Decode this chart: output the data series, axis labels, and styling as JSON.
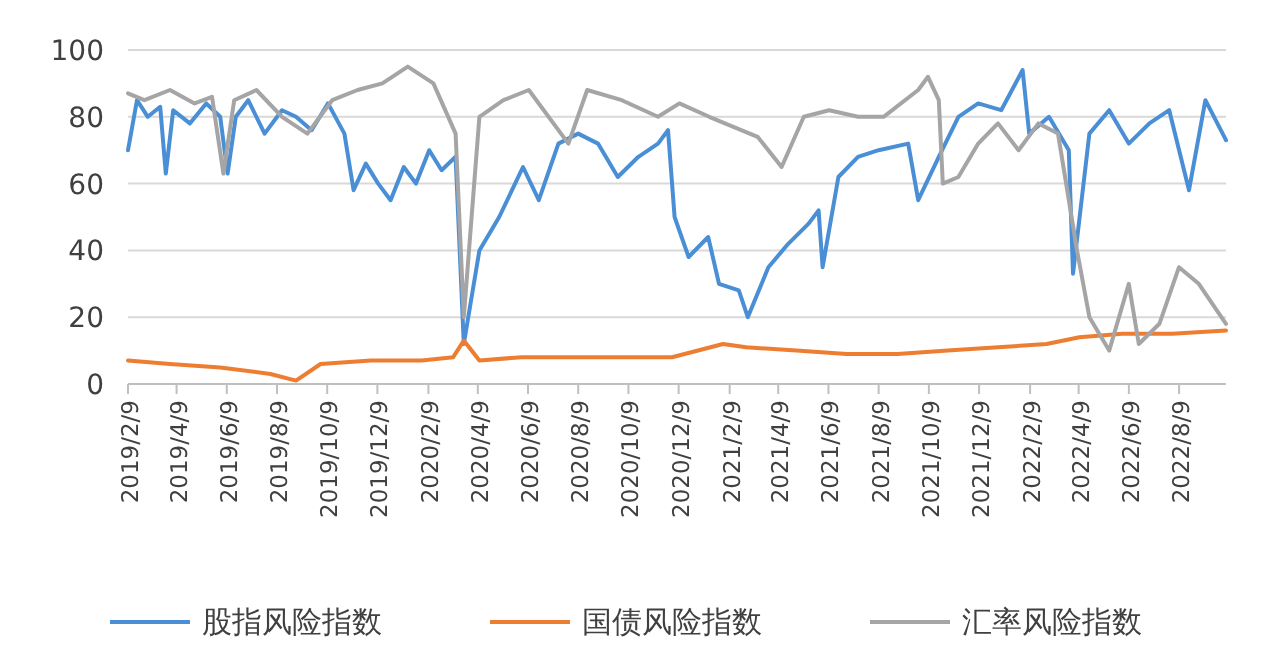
{
  "chart_data": {
    "type": "line",
    "xlim": [
      "2019-02-09",
      "2022-10-05"
    ],
    "ylim": [
      0,
      100
    ],
    "yticks": [
      0,
      20,
      40,
      60,
      80,
      100
    ],
    "xticks": [
      {
        "value": "2019-02-09",
        "label": "2019/2/9"
      },
      {
        "value": "2019-04-09",
        "label": "2019/4/9"
      },
      {
        "value": "2019-06-09",
        "label": "2019/6/9"
      },
      {
        "value": "2019-08-09",
        "label": "2019/8/9"
      },
      {
        "value": "2019-10-09",
        "label": "2019/10/9"
      },
      {
        "value": "2019-12-09",
        "label": "2019/12/9"
      },
      {
        "value": "2020-02-09",
        "label": "2020/2/9"
      },
      {
        "value": "2020-04-09",
        "label": "2020/4/9"
      },
      {
        "value": "2020-06-09",
        "label": "2020/6/9"
      },
      {
        "value": "2020-08-09",
        "label": "2020/8/9"
      },
      {
        "value": "2020-10-09",
        "label": "2020/10/9"
      },
      {
        "value": "2020-12-09",
        "label": "2020/12/9"
      },
      {
        "value": "2021-02-09",
        "label": "2021/2/9"
      },
      {
        "value": "2021-04-09",
        "label": "2021/4/9"
      },
      {
        "value": "2021-06-09",
        "label": "2021/6/9"
      },
      {
        "value": "2021-08-09",
        "label": "2021/8/9"
      },
      {
        "value": "2021-10-09",
        "label": "2021/10/9"
      },
      {
        "value": "2021-12-09",
        "label": "2021/12/9"
      },
      {
        "value": "2022-02-09",
        "label": "2022/2/9"
      },
      {
        "value": "2022-04-09",
        "label": "2022/4/9"
      },
      {
        "value": "2022-06-09",
        "label": "2022/6/9"
      },
      {
        "value": "2022-08-09",
        "label": "2022/8/9"
      }
    ],
    "grid": "y",
    "legend": "bottom",
    "series": [
      {
        "name": "股指风险指数",
        "color": "#4a8fd6",
        "x": [
          "2019-02-09",
          "2019-02-20",
          "2019-03-05",
          "2019-03-20",
          "2019-03-27",
          "2019-04-05",
          "2019-04-25",
          "2019-05-15",
          "2019-06-01",
          "2019-06-10",
          "2019-06-20",
          "2019-07-05",
          "2019-07-25",
          "2019-08-15",
          "2019-09-01",
          "2019-09-20",
          "2019-10-10",
          "2019-10-30",
          "2019-11-10",
          "2019-11-25",
          "2019-12-10",
          "2019-12-25",
          "2020-01-10",
          "2020-01-25",
          "2020-02-10",
          "2020-02-25",
          "2020-03-13",
          "2020-03-23",
          "2020-04-11",
          "2020-05-05",
          "2020-06-03",
          "2020-06-22",
          "2020-07-16",
          "2020-08-09",
          "2020-09-02",
          "2020-09-26",
          "2020-10-21",
          "2020-11-14",
          "2020-11-26",
          "2020-12-04",
          "2020-12-21",
          "2021-01-14",
          "2021-01-27",
          "2021-02-20",
          "2021-03-03",
          "2021-03-28",
          "2021-04-21",
          "2021-05-16",
          "2021-05-28",
          "2021-06-02",
          "2021-06-21",
          "2021-07-15",
          "2021-08-09",
          "2021-09-14",
          "2021-09-26",
          "2021-10-21",
          "2021-11-14",
          "2021-12-08",
          "2022-01-05",
          "2022-01-31",
          "2022-02-08",
          "2022-03-04",
          "2022-03-28",
          "2022-04-02",
          "2022-04-22",
          "2022-05-16",
          "2022-06-09",
          "2022-07-04",
          "2022-07-28",
          "2022-08-21",
          "2022-09-10",
          "2022-10-05"
        ],
        "values": [
          70,
          85,
          80,
          83,
          63,
          82,
          78,
          84,
          80,
          63,
          80,
          85,
          75,
          82,
          80,
          76,
          84,
          75,
          58,
          66,
          60,
          55,
          65,
          60,
          70,
          64,
          68,
          12,
          40,
          50,
          65,
          55,
          72,
          75,
          72,
          62,
          68,
          72,
          76,
          50,
          38,
          44,
          30,
          28,
          20,
          35,
          42,
          48,
          52,
          35,
          62,
          68,
          70,
          72,
          55,
          68,
          80,
          84,
          82,
          94,
          75,
          80,
          70,
          33,
          75,
          82,
          72,
          78,
          82,
          58,
          85,
          73
        ]
      },
      {
        "name": "国债风险指数",
        "color": "#ed7d31",
        "x": [
          "2019-02-09",
          "2019-04-01",
          "2019-06-01",
          "2019-08-01",
          "2019-09-01",
          "2019-10-01",
          "2019-12-01",
          "2020-02-01",
          "2020-03-10",
          "2020-03-23",
          "2020-04-11",
          "2020-06-01",
          "2020-09-01",
          "2020-12-01",
          "2021-02-01",
          "2021-03-01",
          "2021-05-01",
          "2021-07-01",
          "2021-09-01",
          "2021-11-01",
          "2022-01-01",
          "2022-03-01",
          "2022-04-10",
          "2022-06-01",
          "2022-08-01",
          "2022-10-05"
        ],
        "values": [
          7,
          6,
          5,
          3,
          1,
          6,
          7,
          7,
          8,
          13,
          7,
          8,
          8,
          8,
          12,
          11,
          10,
          9,
          9,
          10,
          11,
          12,
          14,
          15,
          15,
          16
        ]
      },
      {
        "name": "汇率风险指数",
        "color": "#a5a5a5",
        "x": [
          "2019-02-09",
          "2019-03-01",
          "2019-04-01",
          "2019-05-01",
          "2019-05-22",
          "2019-06-05",
          "2019-06-18",
          "2019-07-15",
          "2019-08-15",
          "2019-09-15",
          "2019-10-15",
          "2019-11-15",
          "2019-12-15",
          "2020-01-15",
          "2020-02-15",
          "2020-03-13",
          "2020-03-23",
          "2020-04-11",
          "2020-05-10",
          "2020-06-10",
          "2020-07-28",
          "2020-08-20",
          "2020-10-01",
          "2020-11-14",
          "2020-12-10",
          "2021-01-15",
          "2021-03-15",
          "2021-04-13",
          "2021-05-10",
          "2021-06-10",
          "2021-07-15",
          "2021-08-15",
          "2021-09-26",
          "2021-10-08",
          "2021-10-21",
          "2021-10-26",
          "2021-11-14",
          "2021-12-08",
          "2022-01-01",
          "2022-01-26",
          "2022-02-19",
          "2022-03-15",
          "2022-04-07",
          "2022-04-22",
          "2022-05-16",
          "2022-06-09",
          "2022-06-21",
          "2022-07-16",
          "2022-08-09",
          "2022-09-02",
          "2022-10-05"
        ],
        "values": [
          87,
          85,
          88,
          84,
          86,
          63,
          85,
          88,
          80,
          75,
          85,
          88,
          90,
          95,
          90,
          75,
          20,
          80,
          85,
          88,
          72,
          88,
          85,
          80,
          84,
          80,
          74,
          65,
          80,
          82,
          80,
          80,
          88,
          92,
          85,
          60,
          62,
          72,
          78,
          70,
          78,
          75,
          40,
          20,
          10,
          30,
          12,
          18,
          35,
          30,
          18
        ]
      }
    ]
  }
}
